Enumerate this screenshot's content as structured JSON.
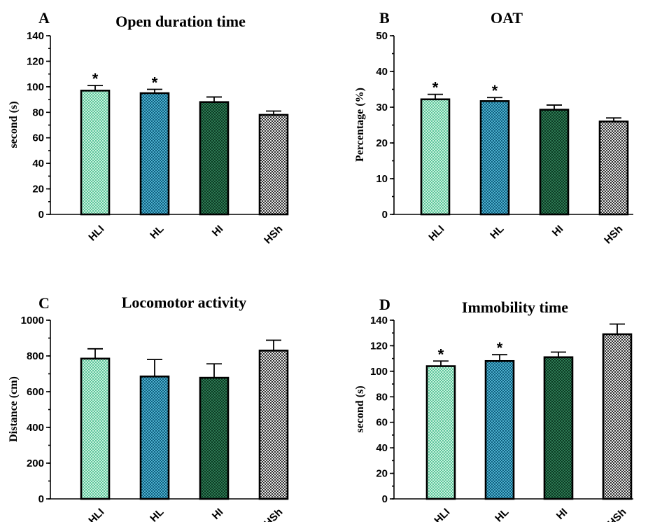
{
  "colors": {
    "HLI": "#a8e6c9",
    "HL": "#2a8fb0",
    "HI": "#1d5e3e",
    "HSh": "#9a9a9a"
  },
  "chart_data": [
    {
      "type": "bar",
      "letter": "A",
      "title": "Open duration time",
      "ylabel": "second (s)",
      "categories": [
        "HLI",
        "HL",
        "HI",
        "HSh"
      ],
      "values": [
        97,
        95,
        88,
        78
      ],
      "errors": [
        4,
        3,
        4,
        3
      ],
      "significant": [
        "*",
        "*",
        "",
        ""
      ],
      "ylim": [
        0,
        140
      ],
      "yticks": [
        0,
        20,
        40,
        60,
        80,
        100,
        120,
        140
      ],
      "minor_step": 10
    },
    {
      "type": "bar",
      "letter": "B",
      "title": "OAT",
      "ylabel": "Percentage (%)",
      "categories": [
        "HLI",
        "HL",
        "HI",
        "HSh"
      ],
      "values": [
        32.2,
        31.7,
        29.3,
        26
      ],
      "errors": [
        1.4,
        1,
        1.3,
        1
      ],
      "significant": [
        "*",
        "*",
        "",
        ""
      ],
      "ylim": [
        0,
        50
      ],
      "yticks": [
        0,
        10,
        20,
        30,
        40,
        50
      ],
      "minor_step": 5
    },
    {
      "type": "bar",
      "letter": "C",
      "title": "Locomotor activity",
      "ylabel": "Distance (cm)",
      "categories": [
        "HLI",
        "HL",
        "HI",
        "HSh"
      ],
      "values": [
        785,
        685,
        678,
        830
      ],
      "errors": [
        55,
        95,
        78,
        58
      ],
      "significant": [
        "",
        "",
        "",
        ""
      ],
      "ylim": [
        0,
        1000
      ],
      "yticks": [
        0,
        200,
        400,
        600,
        800,
        1000
      ],
      "minor_step": 100
    },
    {
      "type": "bar",
      "letter": "D",
      "title": "Immobility time",
      "ylabel": "second (s)",
      "categories": [
        "HLI",
        "HL",
        "HI",
        "HSh"
      ],
      "values": [
        104,
        108,
        111,
        129
      ],
      "errors": [
        4,
        5,
        4,
        8
      ],
      "significant": [
        "*",
        "*",
        "",
        ""
      ],
      "ylim": [
        0,
        140
      ],
      "yticks": [
        0,
        20,
        40,
        60,
        80,
        100,
        120,
        140
      ],
      "minor_step": 10
    }
  ]
}
